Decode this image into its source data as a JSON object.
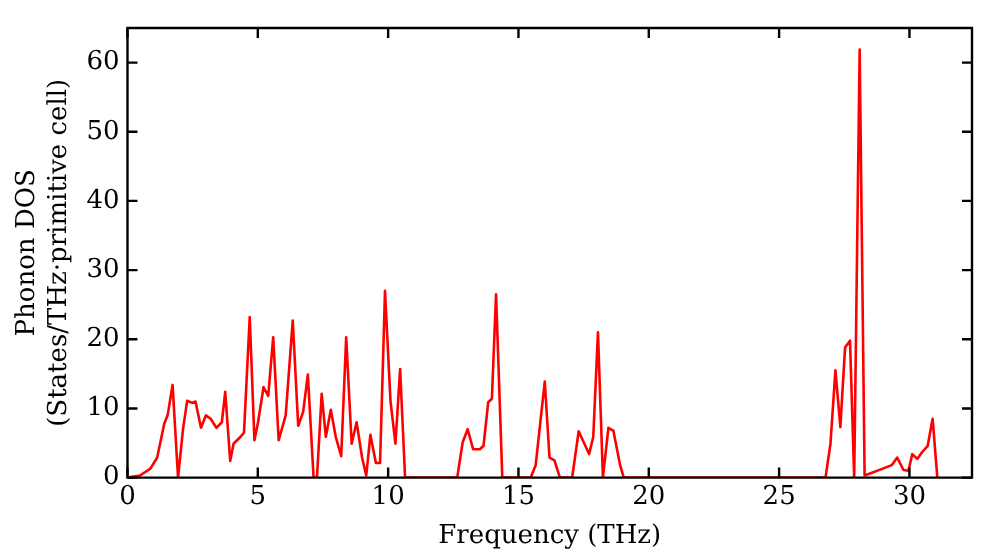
{
  "chart_data": {
    "type": "line",
    "xlabel": "Frequency (THz)",
    "ylabel": "Phonon DOS\n(States/THz·primitive cell)",
    "xlim": [
      0,
      32.4
    ],
    "xticks": [
      0,
      5,
      10,
      15,
      20,
      25,
      30
    ],
    "ylim": [
      0,
      65
    ],
    "yticks": [
      0,
      10,
      20,
      30,
      40,
      50,
      60
    ],
    "grid": false,
    "legend": false,
    "marker": "none",
    "line_style": "solid",
    "series": [
      {
        "color": "#ff0000",
        "x": [
          0,
          0.48,
          0.88,
          1.14,
          1.41,
          1.54,
          1.73,
          1.94,
          2.13,
          2.29,
          2.48,
          2.61,
          2.82,
          3.01,
          3.19,
          3.41,
          3.62,
          3.75,
          3.94,
          4.07,
          4.34,
          4.47,
          4.69,
          4.87,
          5.01,
          5.22,
          5.4,
          5.59,
          5.8,
          6.07,
          6.34,
          6.55,
          6.74,
          6.92,
          7.14,
          7.27,
          7.45,
          7.61,
          7.8,
          7.99,
          8.2,
          8.39,
          8.6,
          8.79,
          9.0,
          9.16,
          9.32,
          9.53,
          9.69,
          9.88,
          10.09,
          10.28,
          10.46,
          10.65,
          12.65,
          12.86,
          13.05,
          13.26,
          13.52,
          13.66,
          13.84,
          13.98,
          14.14,
          14.38,
          15.47,
          15.66,
          16.01,
          16.19,
          16.38,
          16.59,
          17.06,
          17.31,
          17.71,
          17.87,
          18.05,
          18.24,
          18.45,
          18.64,
          18.9,
          19.04,
          26.78,
          26.97,
          27.16,
          27.35,
          27.53,
          27.72,
          27.88,
          28.09,
          28.28,
          28.98,
          29.32,
          29.53,
          29.77,
          29.96,
          30.11,
          30.3,
          30.49,
          30.7,
          30.89,
          31.07
        ],
        "values": [
          0,
          0.3,
          1.3,
          2.9,
          7.8,
          9.0,
          13.4,
          0,
          7.0,
          11.1,
          10.8,
          11.0,
          7.2,
          9.0,
          8.5,
          7.2,
          8.0,
          12.4,
          2.4,
          4.9,
          5.9,
          6.5,
          23.2,
          5.4,
          8.0,
          13.1,
          11.8,
          20.3,
          5.4,
          9.0,
          22.7,
          7.5,
          9.5,
          14.9,
          0,
          0,
          12.1,
          5.9,
          9.8,
          5.9,
          3.1,
          20.3,
          4.9,
          8.0,
          2.9,
          0.3,
          6.2,
          2.1,
          2.1,
          27.0,
          11.1,
          4.9,
          15.7,
          0,
          0,
          5.1,
          7.0,
          4.1,
          4.1,
          4.6,
          10.9,
          11.4,
          26.5,
          0,
          0,
          1.8,
          13.9,
          2.9,
          2.5,
          0,
          0,
          6.7,
          3.4,
          5.9,
          21.0,
          0,
          7.2,
          6.8,
          1.8,
          0,
          0,
          4.9,
          15.5,
          7.3,
          18.8,
          19.8,
          0,
          61.9,
          0.3,
          1.3,
          1.8,
          2.9,
          1.1,
          1.0,
          3.4,
          2.7,
          3.7,
          4.6,
          8.5,
          0
        ]
      }
    ]
  }
}
